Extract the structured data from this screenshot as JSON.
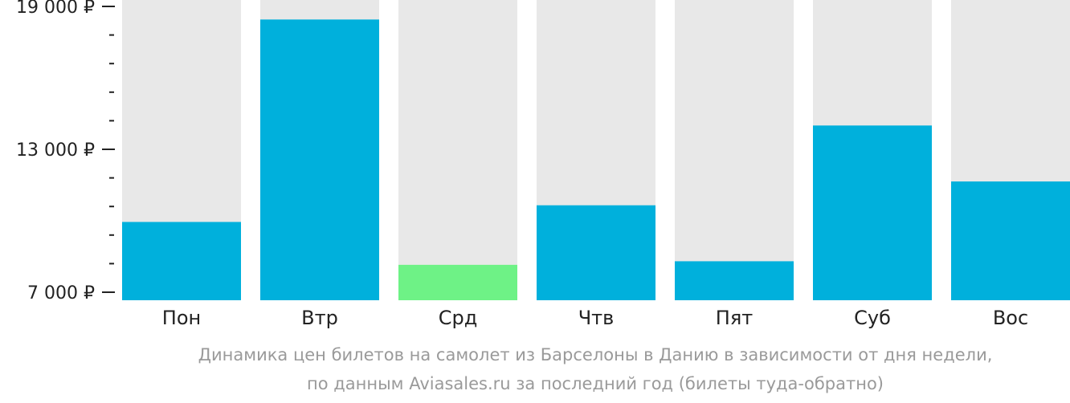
{
  "chart_data": {
    "type": "bar",
    "categories": [
      "Пон",
      "Втр",
      "Срд",
      "Чтв",
      "Пят",
      "Суб",
      "Вос"
    ],
    "values": [
      9950,
      18450,
      8150,
      10650,
      8300,
      14000,
      11650
    ],
    "highlight_index": 2,
    "ylim": [
      7000,
      19000
    ],
    "yticks": [
      {
        "value": 19000,
        "label": "19 000 ₽"
      },
      {
        "value": 13000,
        "label": "13 000 ₽"
      },
      {
        "value": 7000,
        "label": "7 000 ₽"
      }
    ],
    "minor_tick_step": 1200,
    "colors": {
      "bar": "#00b0dc",
      "highlight": "#6ef286",
      "track": "#e8e8e8",
      "axis": "#222222"
    }
  },
  "caption": {
    "line1": "Динамика цен билетов на самолет из Барселоны в Данию в зависимости от дня недели,",
    "line2": "по данным Aviasales.ru за последний год (билеты туда-обратно)"
  }
}
